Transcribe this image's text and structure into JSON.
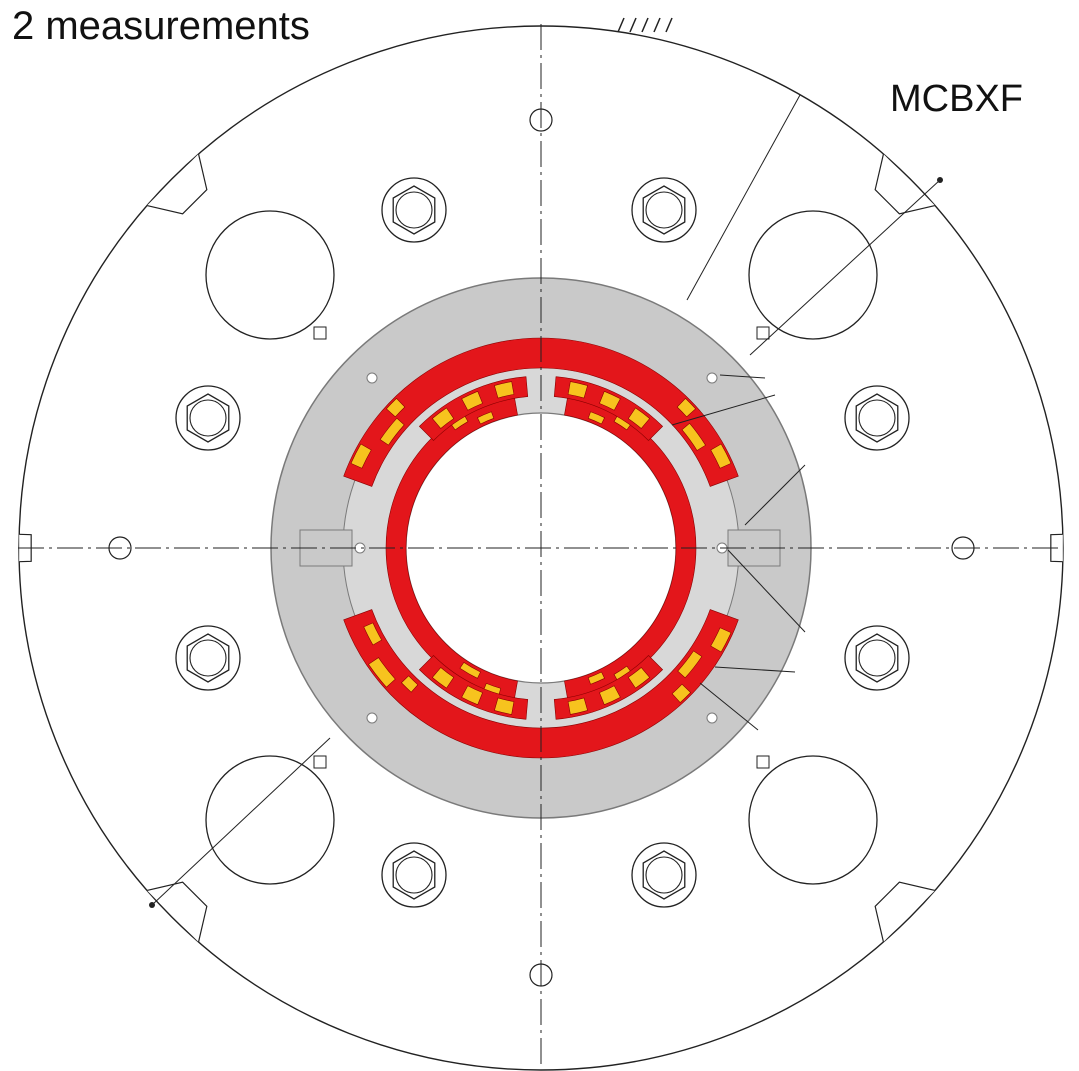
{
  "header": {
    "title": "2 measurements"
  },
  "drawing": {
    "magnet_name": "MCBXF",
    "colors": {
      "line": "#222222",
      "collar": "#c9c9c9",
      "collar_edge": "#7a7a7a",
      "coil_red": "#e3161b",
      "coil_yellow": "#f7c31e",
      "background": "#ffffff"
    },
    "icons": [
      "nut-icon",
      "pin-hole-icon"
    ]
  }
}
